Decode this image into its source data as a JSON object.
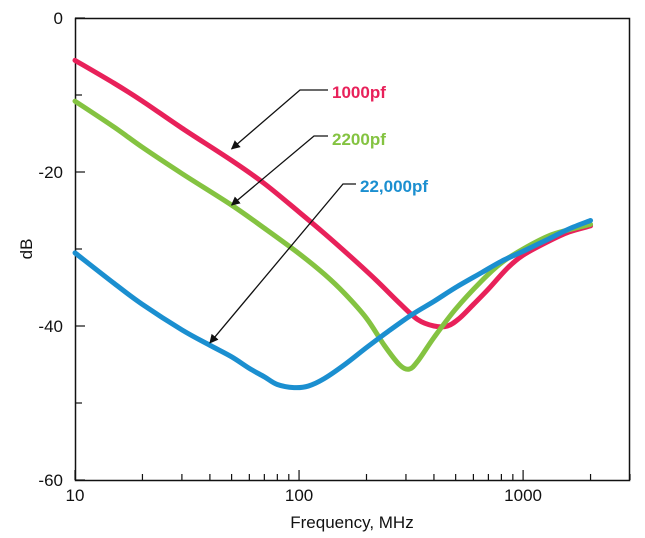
{
  "chart_data": {
    "type": "line",
    "title": "",
    "xlabel": "Frequency, MHz",
    "ylabel": "dB",
    "x_scale": "log",
    "xlim": [
      10,
      3000
    ],
    "ylim": [
      -60,
      0
    ],
    "x_ticks": [
      10,
      100,
      1000
    ],
    "x_tick_labels": [
      "10",
      "100",
      "1000"
    ],
    "y_ticks": [
      0,
      -20,
      -40,
      -60
    ],
    "y_tick_labels": [
      "0",
      "-20",
      "-40",
      "-60"
    ],
    "grid": false,
    "legend": "inline-annotations",
    "series": [
      {
        "name": "1000pf",
        "color": "#e8215a",
        "points": [
          [
            10,
            -5.5
          ],
          [
            15,
            -8.5
          ],
          [
            20,
            -10.8
          ],
          [
            30,
            -14.3
          ],
          [
            50,
            -18.5
          ],
          [
            70,
            -21.5
          ],
          [
            100,
            -25.2
          ],
          [
            130,
            -28
          ],
          [
            170,
            -31
          ],
          [
            220,
            -34
          ],
          [
            280,
            -37
          ],
          [
            340,
            -39.2
          ],
          [
            400,
            -40
          ],
          [
            460,
            -40
          ],
          [
            520,
            -39
          ],
          [
            600,
            -37.2
          ],
          [
            700,
            -35.2
          ],
          [
            850,
            -32.5
          ],
          [
            1000,
            -30.8
          ],
          [
            1300,
            -29
          ],
          [
            1600,
            -27.8
          ],
          [
            2000,
            -27
          ]
        ]
      },
      {
        "name": "2200pf",
        "color": "#84c341",
        "points": [
          [
            10,
            -10.8
          ],
          [
            15,
            -14.2
          ],
          [
            20,
            -16.8
          ],
          [
            30,
            -20.2
          ],
          [
            50,
            -24.3
          ],
          [
            70,
            -27.3
          ],
          [
            100,
            -30.6
          ],
          [
            130,
            -33.3
          ],
          [
            160,
            -35.8
          ],
          [
            200,
            -39
          ],
          [
            240,
            -42.5
          ],
          [
            280,
            -45
          ],
          [
            310,
            -45.6
          ],
          [
            340,
            -44.5
          ],
          [
            400,
            -41.5
          ],
          [
            500,
            -37.8
          ],
          [
            650,
            -34.2
          ],
          [
            800,
            -31.8
          ],
          [
            1000,
            -30
          ],
          [
            1300,
            -28.3
          ],
          [
            1600,
            -27.5
          ],
          [
            2000,
            -26.8
          ]
        ]
      },
      {
        "name": "22,000pf",
        "color": "#1b8fd0",
        "points": [
          [
            10,
            -30.5
          ],
          [
            15,
            -34.5
          ],
          [
            20,
            -37.2
          ],
          [
            30,
            -40.5
          ],
          [
            40,
            -42.5
          ],
          [
            50,
            -44
          ],
          [
            60,
            -45.5
          ],
          [
            70,
            -46.6
          ],
          [
            80,
            -47.6
          ],
          [
            95,
            -48
          ],
          [
            110,
            -47.8
          ],
          [
            130,
            -46.8
          ],
          [
            160,
            -45
          ],
          [
            200,
            -42.8
          ],
          [
            250,
            -40.7
          ],
          [
            320,
            -38.5
          ],
          [
            400,
            -36.8
          ],
          [
            500,
            -35
          ],
          [
            650,
            -33.1
          ],
          [
            800,
            -31.6
          ],
          [
            1000,
            -30.3
          ],
          [
            1300,
            -28.7
          ],
          [
            1600,
            -27.4
          ],
          [
            2000,
            -26.3
          ]
        ]
      }
    ],
    "annotations": [
      {
        "text": "1000pf",
        "series": "1000pf",
        "arrow_to": [
          50,
          -17
        ]
      },
      {
        "text": "2200pf",
        "series": "2200pf",
        "arrow_to": [
          50,
          -24.3
        ]
      },
      {
        "text": "22,000pf",
        "series": "22,000pf",
        "arrow_to": [
          40,
          -42.2
        ]
      }
    ]
  }
}
